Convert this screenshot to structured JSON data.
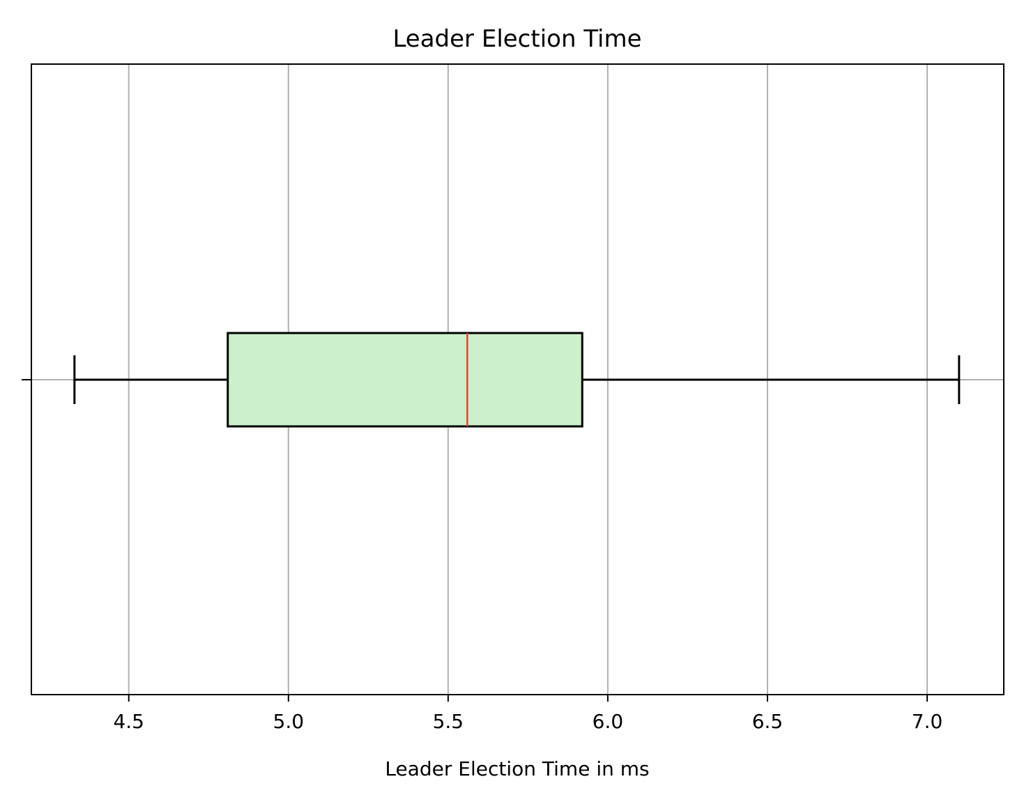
{
  "chart_data": {
    "type": "box",
    "orientation": "horizontal",
    "title": "Leader Election Time",
    "xlabel": "Leader Election Time in ms",
    "ylabel": "",
    "xlim": [
      4.195,
      7.24
    ],
    "xticks": [
      4.5,
      5.0,
      5.5,
      6.0,
      6.5,
      7.0
    ],
    "xtick_labels": [
      "4.5",
      "5.0",
      "5.5",
      "6.0",
      "6.5",
      "7.0"
    ],
    "grid": true,
    "legend": null,
    "series": [
      {
        "whisker_low": 4.33,
        "q1": 4.81,
        "median": 5.56,
        "q3": 5.92,
        "whisker_high": 7.1
      }
    ],
    "colors": {
      "box_fill": "#ccf0cc",
      "box_edge": "#000000",
      "median": "#e8402a",
      "whisker": "#000000",
      "grid": "#b0b0b0",
      "frame": "#000000"
    }
  }
}
